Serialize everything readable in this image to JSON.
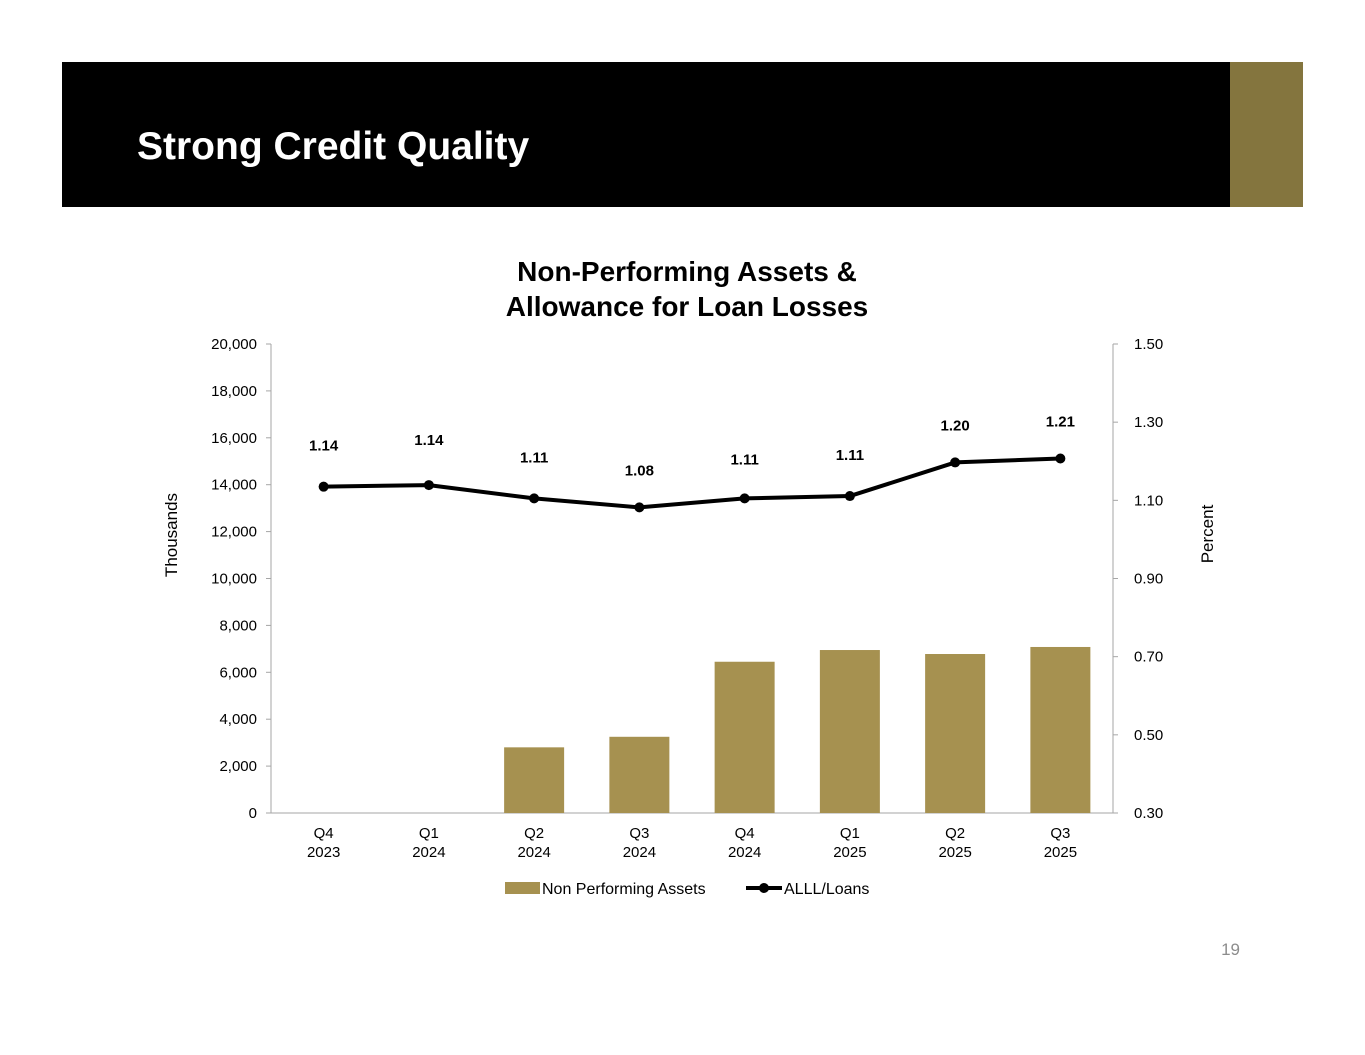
{
  "slide": {
    "title": "Strong Credit Quality",
    "page_number": "19"
  },
  "colors": {
    "banner": "#000000",
    "accent": "#84753e",
    "bar": "#a69150",
    "line": "#000000"
  },
  "chart_data": {
    "type": "bar",
    "title_lines": [
      "Non-Performing Assets &",
      "Allowance for Loan Losses"
    ],
    "categories": [
      [
        "Q4",
        "2023"
      ],
      [
        "Q1",
        "2024"
      ],
      [
        "Q2",
        "2024"
      ],
      [
        "Q3",
        "2024"
      ],
      [
        "Q4",
        "2024"
      ],
      [
        "Q1",
        "2025"
      ],
      [
        "Q2",
        "2025"
      ],
      [
        "Q3",
        "2025"
      ]
    ],
    "ylabel_left": "Thousands",
    "ylabel_right": "Percent",
    "ylim_left": [
      0,
      20000
    ],
    "yticks_left": [
      "0",
      "2,000",
      "4,000",
      "6,000",
      "8,000",
      "10,000",
      "12,000",
      "14,000",
      "16,000",
      "18,000",
      "20,000"
    ],
    "ylim_right": [
      0.3,
      1.5
    ],
    "yticks_right": [
      "0.30",
      "0.50",
      "0.70",
      "0.90",
      "1.10",
      "1.30",
      "1.50"
    ],
    "series": [
      {
        "name": "Non Performing Assets",
        "type": "bar",
        "axis": "left",
        "values": [
          0,
          0,
          2800,
          3250,
          6450,
          6950,
          6780,
          7080
        ]
      },
      {
        "name": "ALLL/Loans",
        "type": "line",
        "axis": "right",
        "values": [
          1.135,
          1.139,
          1.105,
          1.082,
          1.105,
          1.111,
          1.197,
          1.207
        ],
        "labels": [
          "1.14",
          "1.14",
          "1.11",
          "1.08",
          "1.11",
          "1.11",
          "1.20",
          "1.21"
        ]
      }
    ],
    "legend_position": "bottom",
    "grid": false
  }
}
